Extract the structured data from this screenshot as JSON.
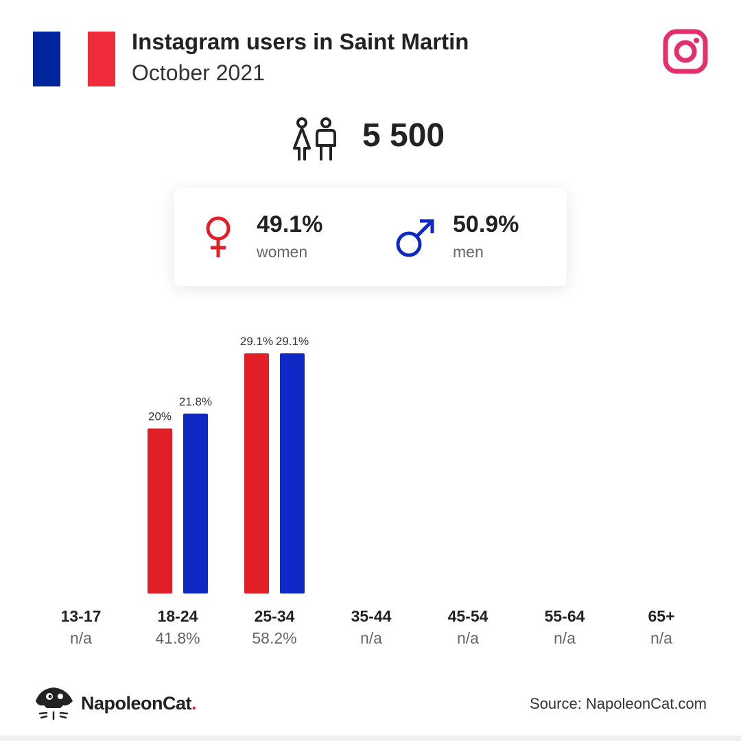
{
  "header": {
    "title": "Instagram users in Saint Martin",
    "subtitle": "October 2021"
  },
  "colors": {
    "flag_blue": "#00249c",
    "flag_red": "#ef2b3c",
    "women": "#e01f26",
    "men": "#0f2ac4",
    "instagram": "#e1306c"
  },
  "icons": [
    "flag-icon",
    "instagram-icon",
    "people-icon",
    "female-icon",
    "male-icon",
    "napoleoncat-logo-icon"
  ],
  "summary": {
    "total": "5 500",
    "women_pct": "49.1%",
    "women_label": "women",
    "men_pct": "50.9%",
    "men_label": "men"
  },
  "chart_data": {
    "type": "bar",
    "categories": [
      "13-17",
      "18-24",
      "25-34",
      "35-44",
      "45-54",
      "55-64",
      "65+"
    ],
    "category_totals": [
      "n/a",
      "41.8%",
      "58.2%",
      "n/a",
      "n/a",
      "n/a",
      "n/a"
    ],
    "series": [
      {
        "values": [
          null,
          20,
          29.1,
          null,
          null,
          null,
          null
        ],
        "labels": [
          "",
          "20%",
          "29.1%",
          "",
          "",
          "",
          ""
        ]
      },
      {
        "values": [
          null,
          21.8,
          29.1,
          null,
          null,
          null,
          null
        ],
        "labels": [
          "",
          "21.8%",
          "29.1%",
          "",
          "",
          "",
          ""
        ]
      }
    ],
    "ylim": [
      0,
      29.1
    ],
    "grid": false
  },
  "footer": {
    "brand": "NapoleonCat",
    "brand_dot": ".",
    "source": "Source: NapoleonCat.com"
  }
}
